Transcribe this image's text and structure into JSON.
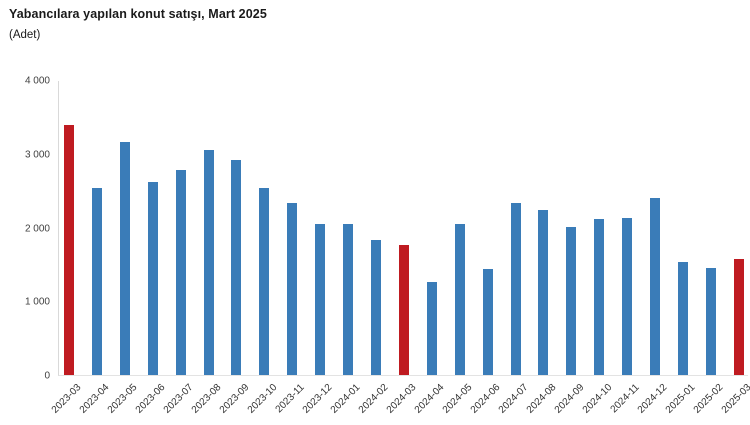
{
  "chart_data": {
    "type": "bar",
    "title": "Yabancılara yapılan konut satışı, Mart 2025",
    "subtitle": "(Adet)",
    "categories": [
      "2023-03",
      "2023-04",
      "2023-05",
      "2023-06",
      "2023-07",
      "2023-08",
      "2023-09",
      "2023-10",
      "2023-11",
      "2023-12",
      "2024-01",
      "2024-02",
      "2024-03",
      "2024-04",
      "2024-05",
      "2024-06",
      "2024-07",
      "2024-08",
      "2024-09",
      "2024-10",
      "2024-11",
      "2024-12",
      "2025-01",
      "2025-02",
      "2025-03"
    ],
    "values": [
      3405,
      2550,
      3165,
      2620,
      2790,
      3060,
      2925,
      2540,
      2345,
      2060,
      2055,
      1835,
      1772,
      1260,
      2060,
      1440,
      2340,
      2250,
      2010,
      2120,
      2140,
      2410,
      1540,
      1450,
      1577
    ],
    "highlight_indexes": [
      0,
      12,
      24
    ],
    "bar_color": "#3a7cb8",
    "highlight_color": "#bf1b21",
    "axis_line_color": "#d9d9d9",
    "ylim": [
      0,
      4000
    ],
    "yticks": [
      0,
      1000,
      2000,
      3000,
      4000
    ],
    "ytick_labels": [
      "0",
      "1 000",
      "2 000",
      "3 000",
      "4 000"
    ],
    "xlabel": "",
    "ylabel": "",
    "grid": false,
    "legend": null
  }
}
